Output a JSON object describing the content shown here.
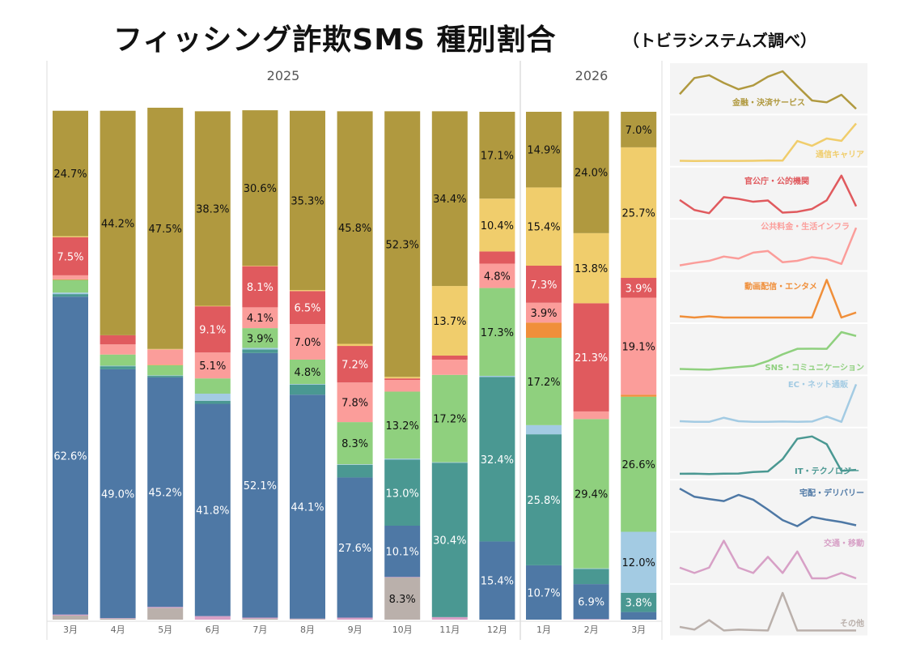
{
  "title": "フィッシング詐欺SMS 種別割合",
  "subtitle": "（トビラシステムズ調べ）",
  "chart_data": {
    "type": "bar",
    "stacked": true,
    "normalized_percent": true,
    "years": [
      {
        "label": "2025",
        "months": 10
      },
      {
        "label": "2026",
        "months": 3
      }
    ],
    "categories": [
      "3月",
      "4月",
      "5月",
      "6月",
      "7月",
      "8月",
      "9月",
      "10月",
      "11月",
      "12月",
      "1月",
      "2月",
      "3月"
    ],
    "series": [
      {
        "name": "その他",
        "color": "#bab0ab",
        "values": [
          0.8,
          0.2,
          2.3,
          0,
          0.2,
          0.1,
          0,
          8.3,
          0,
          0,
          0,
          0,
          0
        ]
      },
      {
        "name": "交通・移動",
        "color": "#d7a0c6",
        "values": [
          0.2,
          0.1,
          0.2,
          0.7,
          0.2,
          0.1,
          0.4,
          0.1,
          0.5,
          0,
          0,
          0.1,
          0
        ]
      },
      {
        "name": "宅配・デリバリー",
        "color": "#4e78a5",
        "values": [
          62.6,
          49.0,
          45.2,
          41.8,
          52.1,
          44.1,
          27.6,
          10.1,
          0,
          15.4,
          10.7,
          6.9,
          1.5
        ]
      },
      {
        "name": "IT・テクノロジー",
        "color": "#4a9892",
        "values": [
          0.5,
          0.6,
          0.3,
          0.6,
          0.7,
          2.0,
          2.5,
          13.0,
          30.4,
          32.4,
          25.8,
          3.0,
          3.8
        ]
      },
      {
        "name": "EC・ネット通販",
        "color": "#a3cbe3",
        "values": [
          0.3,
          0.1,
          0.1,
          1.4,
          0.3,
          0.1,
          0.1,
          0.2,
          0.1,
          0.2,
          1.8,
          0.1,
          12.0
        ]
      },
      {
        "name": "SNS・コミュニケーション",
        "color": "#8fd07e",
        "values": [
          2.5,
          2.2,
          2.0,
          3.0,
          3.9,
          4.8,
          8.3,
          13.2,
          17.2,
          17.3,
          17.2,
          29.4,
          26.6
        ]
      },
      {
        "name": "動画配信・エンタメ",
        "color": "#f08f3a",
        "values": [
          0.1,
          0,
          0.1,
          0,
          0,
          0,
          0,
          0,
          0,
          0,
          3.0,
          0,
          0.4
        ]
      },
      {
        "name": "公共料金・生活インフラ",
        "color": "#fb9d9a",
        "values": [
          0.8,
          2.0,
          3.0,
          5.1,
          4.1,
          7.0,
          7.8,
          2.3,
          3.0,
          4.8,
          3.9,
          1.5,
          19.1
        ]
      },
      {
        "name": "官公庁・公的機関",
        "color": "#e05a5e",
        "values": [
          7.5,
          1.8,
          0,
          9.1,
          8.1,
          6.5,
          7.2,
          0.3,
          0.8,
          2.4,
          7.3,
          21.3,
          3.9
        ]
      },
      {
        "name": "通信キャリア",
        "color": "#f0cd6c",
        "values": [
          0.2,
          0,
          0.1,
          0.1,
          0.1,
          0.2,
          0.4,
          0.3,
          13.7,
          10.4,
          15.4,
          13.8,
          25.7
        ]
      },
      {
        "name": "金融・決済サービス",
        "color": "#b0993f",
        "values": [
          24.7,
          44.2,
          47.5,
          38.3,
          30.6,
          35.3,
          45.8,
          52.3,
          34.4,
          17.1,
          14.9,
          24.0,
          7.0
        ]
      }
    ],
    "label_min_percent": 3.8,
    "ylim": [
      0,
      100
    ],
    "sparklines": "right panel, one per series, top = 金融・決済サービス"
  }
}
